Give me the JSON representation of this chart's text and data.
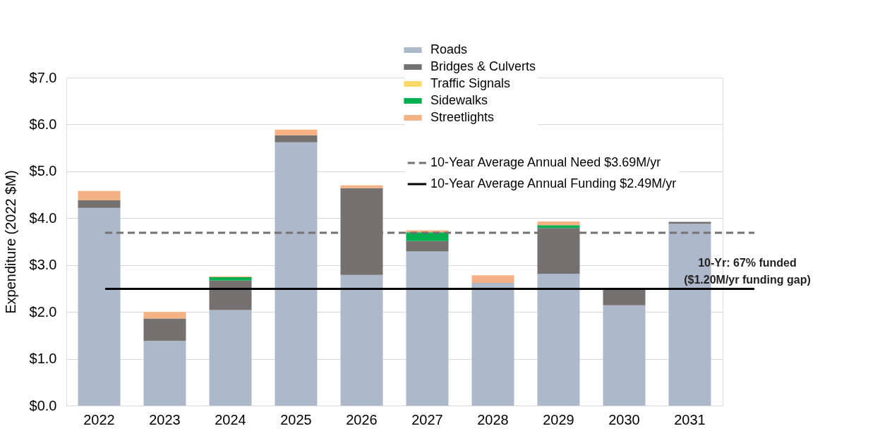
{
  "chart_data": {
    "type": "bar",
    "stacked": true,
    "ylabel": "Expenditure (2022 $M)",
    "categories": [
      "2022",
      "2023",
      "2024",
      "2025",
      "2026",
      "2027",
      "2028",
      "2029",
      "2030",
      "2031"
    ],
    "series": [
      {
        "name": "Roads",
        "color": "#adb9ca",
        "values": [
          4.22,
          1.38,
          2.04,
          5.62,
          2.79,
          3.29,
          2.62,
          2.81,
          2.14,
          3.88
        ]
      },
      {
        "name": "Bridges & Culverts",
        "color": "#767171",
        "values": [
          0.16,
          0.48,
          0.63,
          0.15,
          1.85,
          0.22,
          0,
          0.98,
          0.33,
          0.04
        ]
      },
      {
        "name": "Traffic Signals",
        "color": "#ffd966",
        "values": [
          0,
          0,
          0,
          0,
          0,
          0,
          0,
          0,
          0,
          0
        ]
      },
      {
        "name": "Sidewalks",
        "color": "#00b050",
        "values": [
          0,
          0,
          0.07,
          0,
          0,
          0.19,
          0,
          0.06,
          0,
          0
        ]
      },
      {
        "name": "Streetlights",
        "color": "#f4b183",
        "values": [
          0.2,
          0.14,
          0.02,
          0.12,
          0.06,
          0.04,
          0.16,
          0.08,
          0,
          0
        ]
      }
    ],
    "ylim": [
      0,
      7
    ],
    "yticks": [
      {
        "value": 0,
        "label": "$0.0"
      },
      {
        "value": 1,
        "label": "$1.0"
      },
      {
        "value": 2,
        "label": "$2.0"
      },
      {
        "value": 3,
        "label": "$3.0"
      },
      {
        "value": 4,
        "label": "$4.0"
      },
      {
        "value": 5,
        "label": "$5.0"
      },
      {
        "value": 6,
        "label": "$6.0"
      },
      {
        "value": 7,
        "label": "$7.0"
      }
    ],
    "grid": "y",
    "legend": "top right",
    "ref_lines": [
      {
        "axis": "y",
        "value": 3.69,
        "label": "10-Year Average Annual Need $3.69M/yr",
        "color": "#767171",
        "line_style": "dashed"
      },
      {
        "axis": "y",
        "value": 2.49,
        "label": "10-Year Average Annual Funding $2.49M/yr",
        "color": "#000000",
        "line_style": "solid"
      }
    ],
    "annotations": [
      "10-Yr: 67% funded\n($1.20M/yr funding gap)"
    ]
  }
}
